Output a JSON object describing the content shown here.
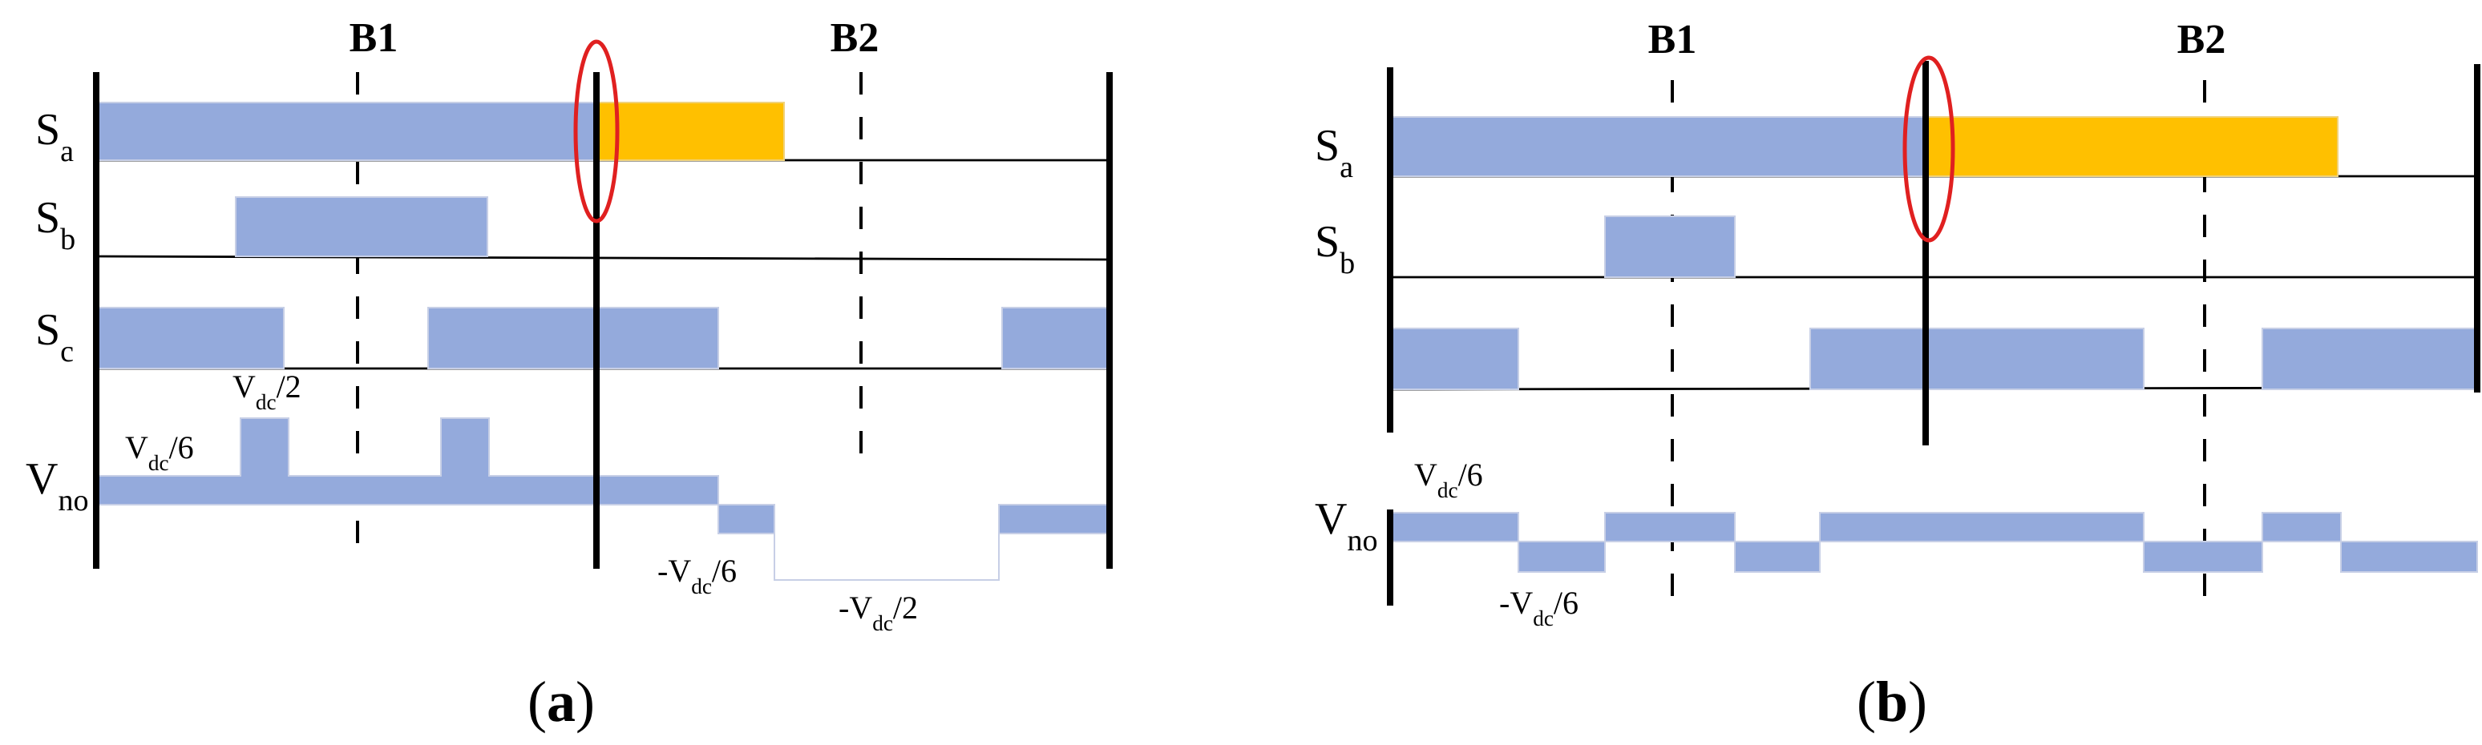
{
  "panels": [
    {
      "caption": {
        "open": "(",
        "label": "a",
        "close": ")"
      },
      "markers": [
        "B1",
        "B2"
      ],
      "signals": [
        {
          "main": "S",
          "sub": "a"
        },
        {
          "main": "S",
          "sub": "b"
        },
        {
          "main": "S",
          "sub": "c"
        },
        {
          "main": "V",
          "sub": "no"
        }
      ],
      "levels": [
        {
          "main": "V",
          "sub": "dc",
          "post": "/2"
        },
        {
          "main": "V",
          "sub": "dc",
          "post": "/6"
        },
        {
          "pre": "-",
          "main": "V",
          "sub": "dc",
          "post": "/6"
        },
        {
          "pre": "-",
          "main": "V",
          "sub": "dc",
          "post": "/2"
        }
      ]
    },
    {
      "caption": {
        "open": "(",
        "label": "b",
        "close": ")"
      },
      "markers": [
        "B1",
        "B2"
      ],
      "signals": [
        {
          "main": "S",
          "sub": "a"
        },
        {
          "main": "S",
          "sub": "b"
        },
        {
          "main": "V",
          "sub": "no"
        }
      ],
      "levels": [
        {
          "main": "V",
          "sub": "dc",
          "post": "/6"
        },
        {
          "pre": "-",
          "main": "V",
          "sub": "dc",
          "post": "/6"
        }
      ]
    }
  ]
}
